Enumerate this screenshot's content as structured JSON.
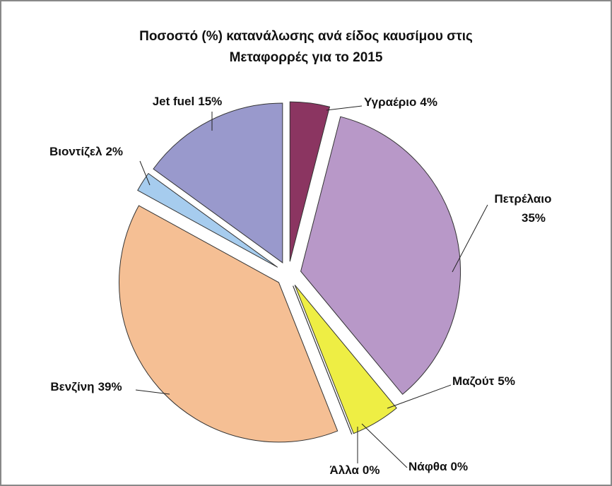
{
  "chart_data": {
    "type": "pie",
    "title": [
      "Ποσοστό (%) κατανάλωσης ανά είδος καυσίμου στις",
      "Μεταφορρές για το 2015"
    ],
    "categories": [
      "Υγραέριο",
      "Πετρέλαιο",
      "Μαζούτ",
      "Νάφθα",
      "Άλλα",
      "Βενζίνη",
      "Βιοντίζελ",
      "Jet fuel"
    ],
    "values": [
      4,
      35,
      5,
      0,
      0,
      39,
      2,
      15
    ],
    "value_labels": [
      "4%",
      "35%",
      "5%",
      "0%",
      "0%",
      "39%",
      "2%",
      "15%"
    ],
    "colors": [
      "#8b3561",
      "#b898c8",
      "#eeee44",
      "#9bbb59",
      "#4bacc6",
      "#f5bf94",
      "#a6ccee",
      "#9999cc"
    ]
  }
}
